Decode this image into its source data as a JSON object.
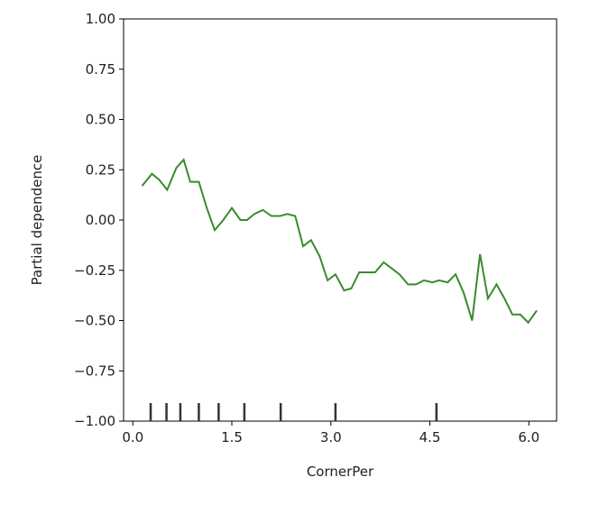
{
  "chart_data": {
    "type": "line",
    "x_label": "CornerPer",
    "y_label": "Partial dependence",
    "x": [
      0.14,
      0.29,
      0.4,
      0.52,
      0.66,
      0.77,
      0.87,
      1.0,
      1.12,
      1.24,
      1.37,
      1.5,
      1.63,
      1.73,
      1.84,
      1.97,
      2.1,
      2.23,
      2.34,
      2.46,
      2.58,
      2.7,
      2.83,
      2.95,
      3.07,
      3.2,
      3.31,
      3.43,
      3.55,
      3.67,
      3.8,
      3.92,
      4.04,
      4.17,
      4.29,
      4.41,
      4.54,
      4.64,
      4.77,
      4.89,
      5.01,
      5.14,
      5.26,
      5.38,
      5.51,
      5.63,
      5.75,
      5.87,
      5.99,
      6.12
    ],
    "series": [
      {
        "color": "#3a8a2e",
        "values": [
          0.17,
          0.23,
          0.2,
          0.15,
          0.26,
          0.3,
          0.19,
          0.19,
          0.06,
          -0.05,
          0.0,
          0.06,
          0.0,
          0.0,
          0.03,
          0.05,
          0.02,
          0.02,
          0.03,
          0.02,
          -0.13,
          -0.1,
          -0.18,
          -0.3,
          -0.27,
          -0.35,
          -0.34,
          -0.26,
          -0.26,
          -0.26,
          -0.21,
          -0.24,
          -0.27,
          -0.32,
          -0.32,
          -0.3,
          -0.31,
          -0.3,
          -0.31,
          -0.27,
          -0.36,
          -0.5,
          -0.17,
          -0.39,
          -0.32,
          -0.39,
          -0.47,
          -0.47,
          -0.51,
          -0.45
        ]
      }
    ],
    "deciles": [
      0.27,
      0.51,
      0.72,
      1.0,
      1.3,
      1.69,
      2.24,
      3.07,
      4.6
    ],
    "xlim": [
      -0.14,
      6.42
    ],
    "ylim": [
      -1,
      1
    ],
    "xticks": [
      {
        "value": 0,
        "label": "0.0"
      },
      1.5,
      {
        "value": 3,
        "label": "3.0"
      },
      4.5,
      {
        "value": 6,
        "label": "6.0"
      }
    ],
    "yticks": [
      {
        "value": -1,
        "label": "−1.00"
      },
      {
        "value": -0.75,
        "label": "−0.75"
      },
      {
        "value": -0.5,
        "label": "−0.50"
      },
      {
        "value": -0.25,
        "label": "−0.25"
      },
      {
        "value": 0,
        "label": "0.00"
      },
      {
        "value": 0.25,
        "label": "0.25"
      },
      {
        "value": 0.5,
        "label": "0.50"
      },
      {
        "value": 0.75,
        "label": "0.75"
      },
      {
        "value": 1,
        "label": "1.00"
      }
    ]
  }
}
